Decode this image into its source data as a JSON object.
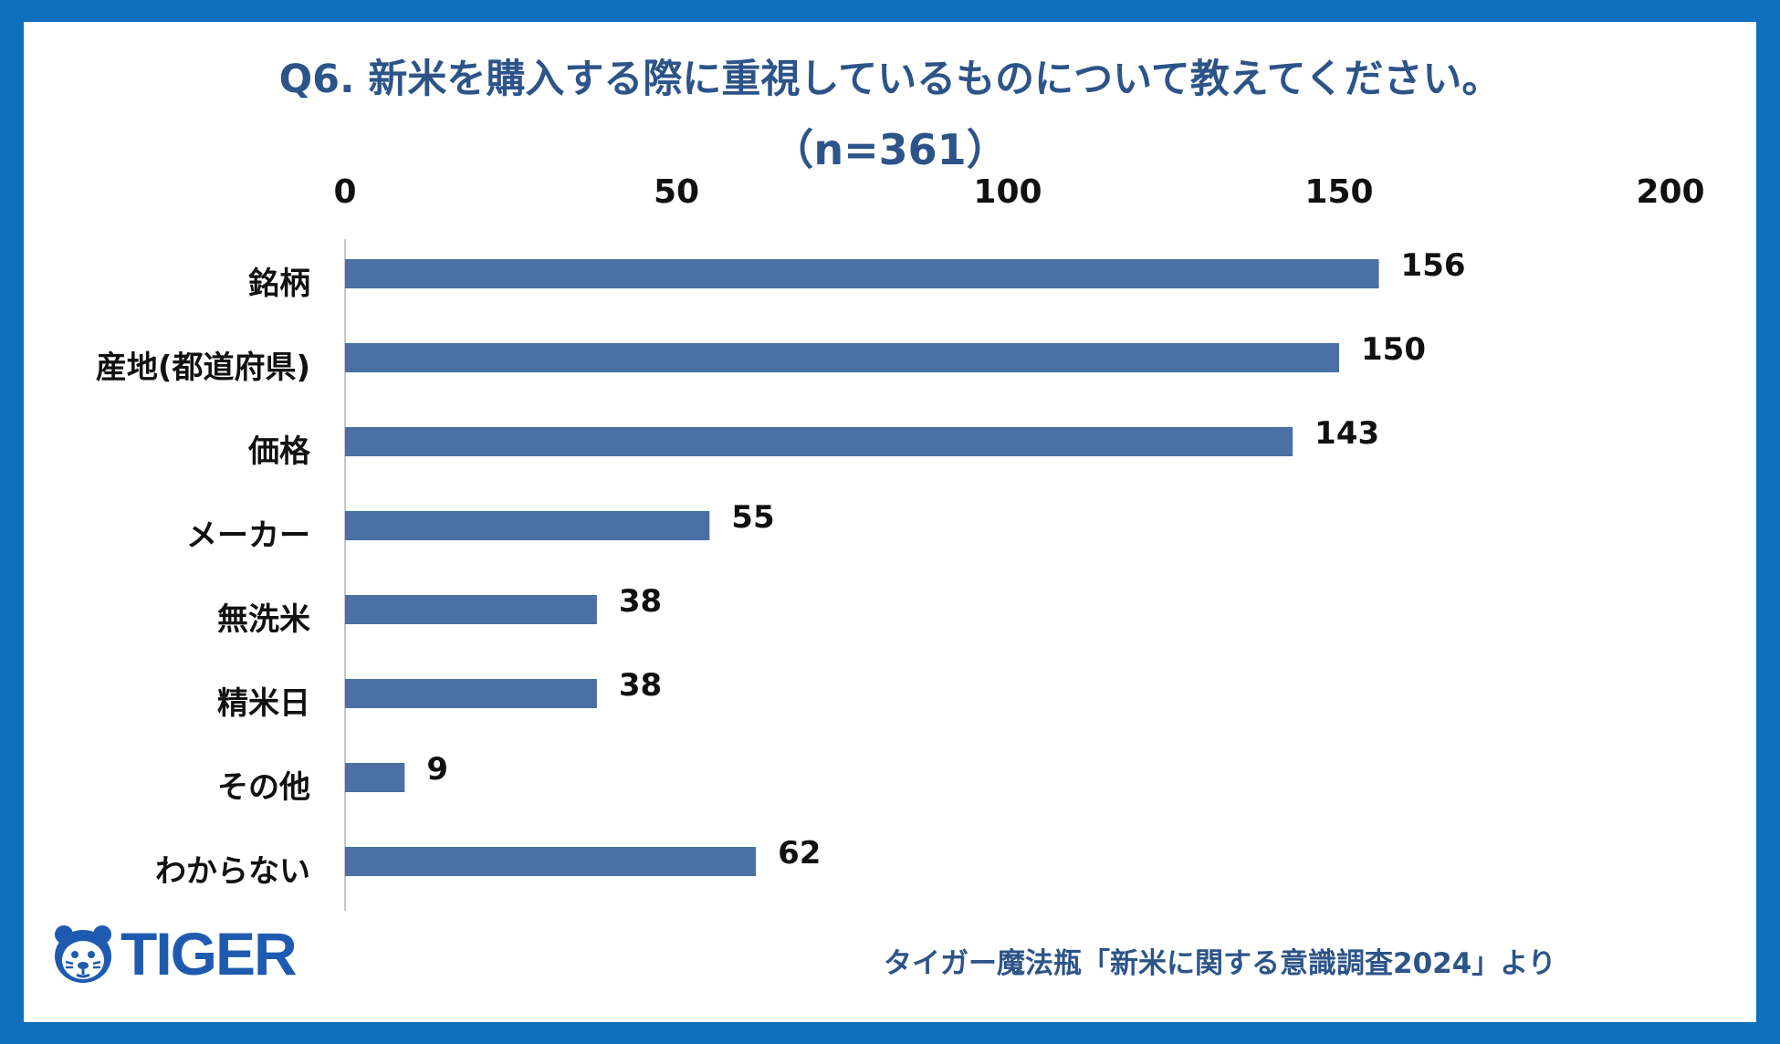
{
  "chart_data": {
    "type": "bar",
    "orientation": "horizontal",
    "title": "Q6. 新米を購入する際に重視しているものについて教えてください。",
    "subtitle": "（n=361）",
    "categories": [
      "銘柄",
      "産地(都道府県)",
      "価格",
      "メーカー",
      "無洗米",
      "精米日",
      "その他",
      "わからない"
    ],
    "values": [
      156,
      150,
      143,
      55,
      38,
      38,
      9,
      62
    ],
    "xlim": [
      0,
      200
    ],
    "xticks": [
      0,
      50,
      100,
      150,
      200
    ],
    "tick_labels": [
      "0",
      "50",
      "100",
      "150",
      "200"
    ],
    "value_labels": [
      "156",
      "150",
      "143",
      "55",
      "38",
      "38",
      "9",
      "62"
    ],
    "xlabel": "",
    "ylabel": "",
    "grid": false,
    "axis_position": "top",
    "bar_color": "#4A70A5"
  },
  "colors": {
    "frame": "#0D6FBE",
    "title": "#2D5488",
    "labels": "#111111",
    "logo": "#1E5BB0"
  },
  "logo": {
    "text": "TIGER",
    "icon": "tiger-face-icon"
  },
  "source": "タイガー魔法瓶「新米に関する意識調査2024」より"
}
